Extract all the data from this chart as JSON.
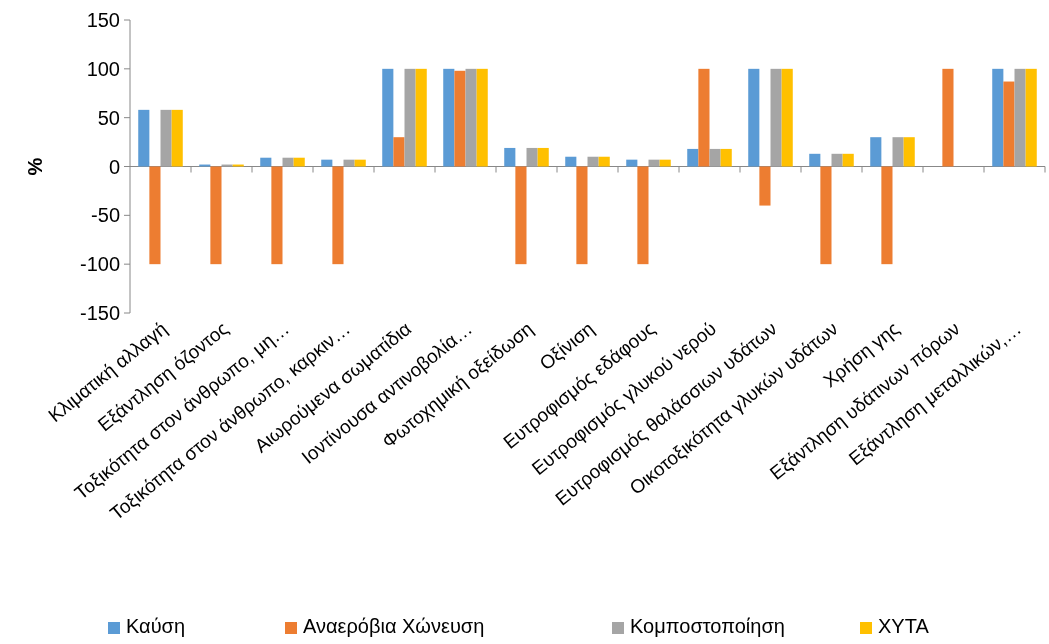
{
  "chart_data": {
    "type": "bar",
    "ylabel": "%",
    "categories": [
      "Κλιματική αλλαγή",
      "Εξάντληση όζοντος",
      "Τοξικότητα στον άνθρωπο, μη…",
      "Τοξικότητα στον άνθρωπο, καρκιν…",
      "Αιωρούμενα σωματίδια",
      "Ιοντίνουσα αντινοβολία…",
      "Φωτοχημική οξείδωση",
      "Οξίνιση",
      "Ευτροφισμός εδάφους",
      "Ευτροφισμός γλυκού νερού",
      "Ευτροφισμός θαλάσσιων υδάτων",
      "Οικοτοξικότητα γλυκών υδάτων",
      "Χρήση γης",
      "Εξάντληση υδάτινων πόρων",
      "Εξάντληση μεταλλικών,…"
    ],
    "series": [
      {
        "name": "Καύση",
        "color": "#5b9bd5",
        "values": [
          58,
          2,
          9,
          7,
          100,
          100,
          19,
          10,
          7,
          18,
          100,
          13,
          30,
          0,
          100
        ]
      },
      {
        "name": "Αναερόβια Χώνευση",
        "color": "#ed7d31",
        "values": [
          -100,
          -100,
          -100,
          -100,
          30,
          98,
          -100,
          -100,
          -100,
          100,
          -40,
          -100,
          -100,
          100,
          87
        ]
      },
      {
        "name": "Κομποστοποίηση",
        "color": "#a5a5a5",
        "values": [
          58,
          2,
          9,
          7,
          100,
          100,
          19,
          10,
          7,
          18,
          100,
          13,
          30,
          0,
          100
        ]
      },
      {
        "name": "ΧΥΤΑ",
        "color": "#ffc000",
        "values": [
          58,
          2,
          9,
          7,
          100,
          100,
          19,
          10,
          7,
          18,
          100,
          13,
          30,
          0,
          100
        ]
      }
    ],
    "ylim": [
      -150,
      150
    ],
    "yticks": [
      -150,
      -100,
      -50,
      0,
      50,
      100,
      150
    ],
    "legend": "bottom"
  }
}
